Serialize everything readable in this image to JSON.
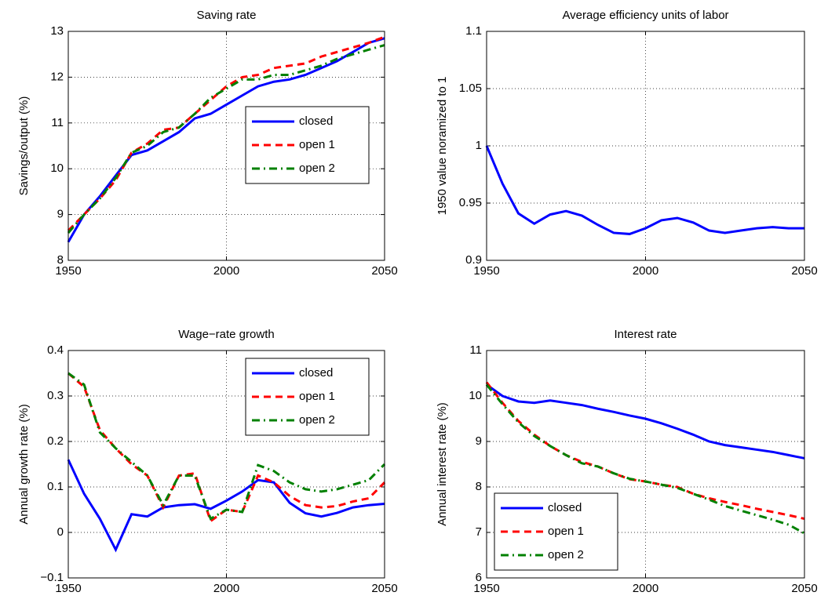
{
  "chart_data": [
    {
      "type": "line",
      "title": "Saving rate",
      "ylabel": "Savings/output (%)",
      "x": [
        1950,
        1955,
        1960,
        1965,
        1970,
        1975,
        1980,
        1985,
        1990,
        1995,
        2000,
        2005,
        2010,
        2015,
        2020,
        2025,
        2030,
        2035,
        2040,
        2045,
        2050
      ],
      "xlim": [
        1950,
        2050
      ],
      "xticks": [
        1950,
        2000,
        2050
      ],
      "ylim": [
        8,
        13
      ],
      "yticks": [
        8,
        9,
        10,
        11,
        12,
        13
      ],
      "grid": true,
      "legend": "center right",
      "series": [
        {
          "name": "closed",
          "color": "#0000ff",
          "style": "solid",
          "values": [
            8.4,
            9.0,
            9.4,
            9.85,
            10.3,
            10.4,
            10.6,
            10.8,
            11.1,
            11.2,
            11.4,
            11.6,
            11.8,
            11.9,
            11.95,
            12.05,
            12.2,
            12.35,
            12.55,
            12.75,
            12.85
          ]
        },
        {
          "name": "open 1",
          "color": "#ff0000",
          "style": "dashed",
          "values": [
            8.65,
            9.0,
            9.35,
            9.75,
            10.35,
            10.55,
            10.85,
            10.9,
            11.2,
            11.5,
            11.8,
            12.0,
            12.05,
            12.2,
            12.25,
            12.3,
            12.45,
            12.55,
            12.65,
            12.75,
            12.88
          ]
        },
        {
          "name": "open 2",
          "color": "#008000",
          "style": "dashdot",
          "values": [
            8.6,
            9.0,
            9.35,
            9.8,
            10.35,
            10.5,
            10.8,
            10.9,
            11.2,
            11.55,
            11.75,
            11.95,
            11.95,
            12.05,
            12.05,
            12.15,
            12.25,
            12.4,
            12.5,
            12.6,
            12.7
          ]
        }
      ]
    },
    {
      "type": "line",
      "title": "Average efficiency units of labor",
      "ylabel": "1950 value noramized to 1",
      "x": [
        1950,
        1955,
        1960,
        1965,
        1970,
        1975,
        1980,
        1985,
        1990,
        1995,
        2000,
        2005,
        2010,
        2015,
        2020,
        2025,
        2030,
        2035,
        2040,
        2045,
        2050
      ],
      "xlim": [
        1950,
        2050
      ],
      "xticks": [
        1950,
        2000,
        2050
      ],
      "ylim": [
        0.9,
        1.1
      ],
      "yticks": [
        0.9,
        0.95,
        1,
        1.05,
        1.1
      ],
      "grid": true,
      "color": "#0000ff",
      "style": "solid",
      "values": [
        1.0,
        0.967,
        0.941,
        0.932,
        0.94,
        0.943,
        0.939,
        0.931,
        0.924,
        0.923,
        0.928,
        0.935,
        0.937,
        0.933,
        0.926,
        0.924,
        0.926,
        0.928,
        0.929,
        0.928,
        0.928
      ]
    },
    {
      "type": "line",
      "title": "Wage−rate growth",
      "ylabel": "Annual growth rate (%)",
      "x": [
        1950,
        1955,
        1960,
        1965,
        1970,
        1975,
        1980,
        1985,
        1990,
        1995,
        2000,
        2005,
        2010,
        2015,
        2020,
        2025,
        2030,
        2035,
        2040,
        2045,
        2050
      ],
      "xlim": [
        1950,
        2050
      ],
      "xticks": [
        1950,
        2000,
        2050
      ],
      "ylim": [
        -0.1,
        0.4
      ],
      "yticks": [
        {
          "value": -0.1,
          "label": "−0.1"
        },
        0,
        0.1,
        0.2,
        0.3,
        0.4
      ],
      "grid": true,
      "legend": "upper right",
      "series": [
        {
          "name": "closed",
          "color": "#0000ff",
          "style": "solid",
          "values": [
            0.16,
            0.085,
            0.03,
            -0.038,
            0.04,
            0.035,
            0.055,
            0.06,
            0.062,
            0.052,
            0.07,
            0.09,
            0.115,
            0.11,
            0.065,
            0.042,
            0.035,
            0.043,
            0.055,
            0.06,
            0.063
          ]
        },
        {
          "name": "open 1",
          "color": "#ff0000",
          "style": "dashed",
          "values": [
            0.35,
            0.32,
            0.225,
            0.185,
            0.15,
            0.125,
            0.055,
            0.125,
            0.13,
            0.025,
            0.05,
            0.045,
            0.125,
            0.11,
            0.08,
            0.06,
            0.055,
            0.058,
            0.068,
            0.075,
            0.11
          ]
        },
        {
          "name": "open 2",
          "color": "#008000",
          "style": "dashdot",
          "values": [
            0.35,
            0.325,
            0.22,
            0.185,
            0.155,
            0.125,
            0.06,
            0.125,
            0.125,
            0.03,
            0.05,
            0.045,
            0.148,
            0.135,
            0.11,
            0.095,
            0.09,
            0.095,
            0.105,
            0.115,
            0.15
          ]
        }
      ]
    },
    {
      "type": "line",
      "title": "Interest rate",
      "ylabel": "Annual interest rate (%)",
      "x": [
        1950,
        1955,
        1960,
        1965,
        1970,
        1975,
        1980,
        1985,
        1990,
        1995,
        2000,
        2005,
        2010,
        2015,
        2020,
        2025,
        2030,
        2035,
        2040,
        2045,
        2050
      ],
      "xlim": [
        1950,
        2050
      ],
      "xticks": [
        1950,
        2000,
        2050
      ],
      "ylim": [
        6,
        11
      ],
      "yticks": [
        6,
        7,
        8,
        9,
        10,
        11
      ],
      "grid": true,
      "legend": "lower left",
      "series": [
        {
          "name": "closed",
          "color": "#0000ff",
          "style": "solid",
          "values": [
            10.25,
            10.0,
            9.88,
            9.85,
            9.9,
            9.85,
            9.8,
            9.72,
            9.65,
            9.57,
            9.5,
            9.4,
            9.28,
            9.15,
            9.0,
            8.92,
            8.87,
            8.82,
            8.77,
            8.7,
            8.63
          ]
        },
        {
          "name": "open 1",
          "color": "#ff0000",
          "style": "dashed",
          "values": [
            10.3,
            9.85,
            9.45,
            9.15,
            8.9,
            8.7,
            8.55,
            8.45,
            8.3,
            8.17,
            8.12,
            8.05,
            8.0,
            7.85,
            7.75,
            7.67,
            7.6,
            7.52,
            7.45,
            7.38,
            7.3
          ]
        },
        {
          "name": "open 2",
          "color": "#008000",
          "style": "dashdot",
          "values": [
            10.25,
            9.82,
            9.42,
            9.12,
            8.9,
            8.7,
            8.52,
            8.45,
            8.3,
            8.18,
            8.12,
            8.05,
            7.98,
            7.85,
            7.72,
            7.58,
            7.48,
            7.38,
            7.28,
            7.17,
            6.98
          ]
        }
      ]
    }
  ]
}
